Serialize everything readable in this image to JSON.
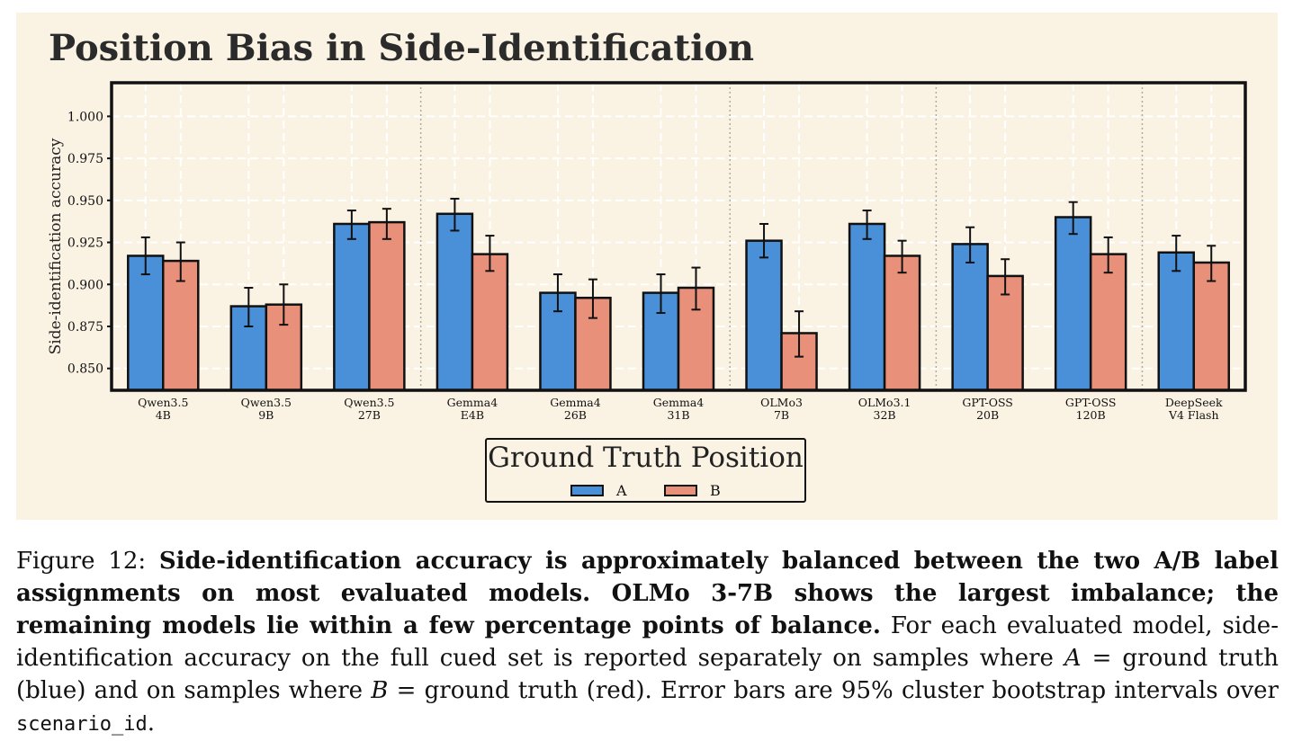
{
  "chart_data": {
    "type": "bar",
    "title": "Position Bias in Side-Identification",
    "ylabel": "Side-identification accuracy",
    "xlabel": "",
    "ylim": [
      0.837,
      1.02
    ],
    "yticks": [
      "0.850",
      "0.875",
      "0.900",
      "0.925",
      "0.950",
      "0.975",
      "1.000"
    ],
    "ytick_values": [
      0.85,
      0.875,
      0.9,
      0.925,
      0.95,
      0.975,
      1.0
    ],
    "grid": true,
    "categories": [
      [
        "Qwen3.5",
        "4B"
      ],
      [
        "Qwen3.5",
        "9B"
      ],
      [
        "Qwen3.5",
        "27B"
      ],
      [
        "Gemma4",
        "E4B"
      ],
      [
        "Gemma4",
        "26B"
      ],
      [
        "Gemma4",
        "31B"
      ],
      [
        "OLMo3",
        "7B"
      ],
      [
        "OLMo3.1",
        "32B"
      ],
      [
        "GPT-OSS",
        "20B"
      ],
      [
        "GPT-OSS",
        "120B"
      ],
      [
        "DeepSeek",
        "V4 Flash"
      ]
    ],
    "family_separators_after": [
      2,
      5,
      7,
      9
    ],
    "series": [
      {
        "name": "A",
        "color": "#4a90d9",
        "values": [
          0.917,
          0.887,
          0.936,
          0.942,
          0.895,
          0.895,
          0.926,
          0.936,
          0.924,
          0.94,
          0.919
        ],
        "ci_low": [
          0.906,
          0.875,
          0.927,
          0.932,
          0.884,
          0.883,
          0.916,
          0.927,
          0.913,
          0.93,
          0.908
        ],
        "ci_high": [
          0.928,
          0.898,
          0.944,
          0.951,
          0.906,
          0.906,
          0.936,
          0.944,
          0.934,
          0.949,
          0.929
        ]
      },
      {
        "name": "B",
        "color": "#e8907a",
        "values": [
          0.914,
          0.888,
          0.937,
          0.918,
          0.892,
          0.898,
          0.871,
          0.917,
          0.905,
          0.918,
          0.913
        ],
        "ci_low": [
          0.902,
          0.876,
          0.927,
          0.908,
          0.88,
          0.885,
          0.857,
          0.907,
          0.894,
          0.907,
          0.902
        ],
        "ci_high": [
          0.925,
          0.9,
          0.945,
          0.929,
          0.903,
          0.91,
          0.884,
          0.926,
          0.915,
          0.928,
          0.923
        ]
      }
    ],
    "legend": {
      "title": "Ground Truth Position",
      "placement": "bottom-center"
    }
  },
  "caption": {
    "prefix": "Figure 12: ",
    "bold": "Side-identification accuracy is approximately balanced between the two A/B label assignments on most evaluated models. OLMo 3-7B shows the largest imbalance; the remaining models lie within a few percentage points of balance.",
    "body1": " For each evaluated model, side-identification accuracy on the full cued set is reported separately on samples where ",
    "var_a": "A",
    "body2": " = ground truth (blue) and on samples where ",
    "var_b": "B",
    "body3": " = ground truth (red). Error bars are 95% cluster bootstrap intervals over ",
    "code": "scenario_id",
    "end": "."
  },
  "colors": {
    "background": "#faf2e3",
    "grid": "#ffffff",
    "series_a": "#4a90d9",
    "series_b": "#e8907a"
  }
}
